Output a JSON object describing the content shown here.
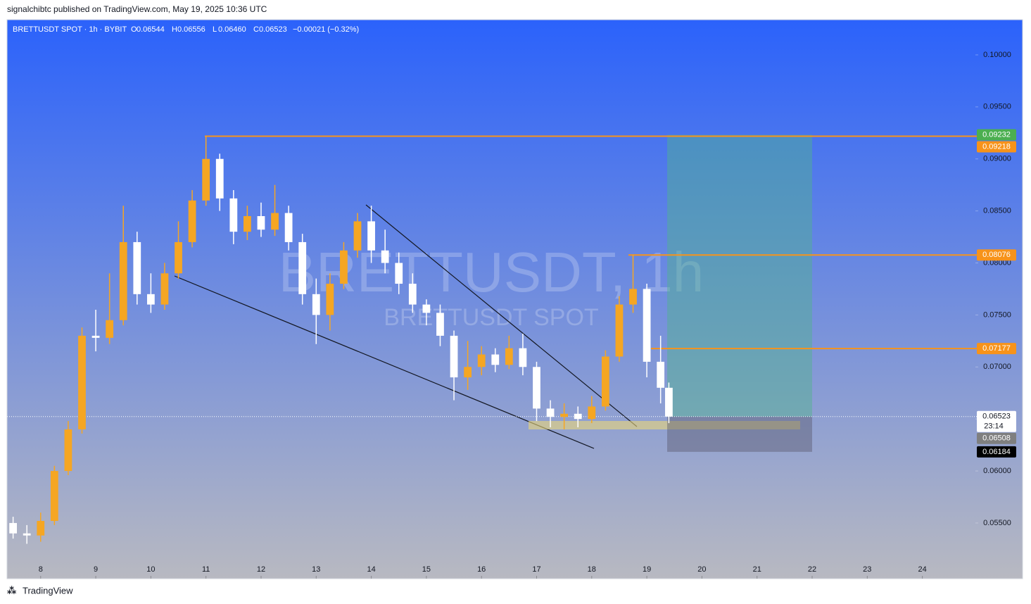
{
  "page": {
    "publisher": "signalchibtc published on TradingView.com, May 19, 2025 10:36 UTC",
    "brand": "TradingView"
  },
  "chart_data": {
    "type": "candlestick",
    "symbol": "BRETTUSDT SPOT · 1h · BYBIT",
    "ohlc_header": [
      {
        "key": "O",
        "value": "0.06544"
      },
      {
        "key": "H",
        "value": "0.06556"
      },
      {
        "key": "L",
        "value": "0.06460"
      },
      {
        "key": "C",
        "value": "0.06523"
      }
    ],
    "change": "−0.00021 (−0.32%)",
    "watermark": "BRETTUSDT, 1h",
    "watermark_sub": "BRETTUSDT SPOT",
    "countdown": "23:14",
    "up_color": "#f5a623",
    "down_color": "#ffffff",
    "xlim": [
      7.39,
      24.95
    ],
    "xticks": [
      8,
      9,
      10,
      11,
      12,
      13,
      14,
      15,
      16,
      17,
      18,
      19,
      20,
      21,
      22,
      23,
      24
    ],
    "ylim": [
      0.04965,
      0.10338
    ],
    "yticks": [
      {
        "value": 0.055,
        "label": "0.05500"
      },
      {
        "value": 0.06,
        "label": "0.06000"
      },
      {
        "value": 0.065,
        "label": "0.06500"
      },
      {
        "value": 0.07,
        "label": "0.07000"
      },
      {
        "value": 0.075,
        "label": "0.07500"
      },
      {
        "value": 0.08,
        "label": "0.08000"
      },
      {
        "value": 0.085,
        "label": "0.08500"
      },
      {
        "value": 0.09,
        "label": "0.09000"
      },
      {
        "value": 0.095,
        "label": "0.09500"
      },
      {
        "value": 0.1,
        "label": "0.10000"
      }
    ],
    "x": [
      7.5,
      7.75,
      8.0,
      8.25,
      8.5,
      8.75,
      9.0,
      9.25,
      9.5,
      9.75,
      10.0,
      10.25,
      10.5,
      10.75,
      11.0,
      11.25,
      11.5,
      11.75,
      12.0,
      12.25,
      12.5,
      12.75,
      13.0,
      13.25,
      13.5,
      13.75,
      14.0,
      14.25,
      14.5,
      14.75,
      15.0,
      15.25,
      15.5,
      15.75,
      16.0,
      16.25,
      16.5,
      16.75,
      17.0,
      17.25,
      17.5,
      17.75,
      18.0,
      18.25,
      18.5,
      18.75,
      19.0,
      19.25,
      19.4
    ],
    "open": [
      0.055,
      0.054,
      0.0538,
      0.0552,
      0.06,
      0.064,
      0.073,
      0.0728,
      0.0745,
      0.082,
      0.077,
      0.076,
      0.079,
      0.082,
      0.086,
      0.09,
      0.0862,
      0.083,
      0.0845,
      0.0832,
      0.0848,
      0.082,
      0.077,
      0.075,
      0.078,
      0.0812,
      0.084,
      0.0812,
      0.08,
      0.078,
      0.076,
      0.0752,
      0.073,
      0.069,
      0.07,
      0.0712,
      0.0702,
      0.0718,
      0.07,
      0.066,
      0.0652,
      0.0655,
      0.065,
      0.0662,
      0.071,
      0.076,
      0.0775,
      0.0705,
      0.068
    ],
    "high": [
      0.0556,
      0.0548,
      0.056,
      0.0605,
      0.0648,
      0.0738,
      0.0755,
      0.079,
      0.0855,
      0.083,
      0.079,
      0.08,
      0.084,
      0.087,
      0.0922,
      0.0905,
      0.087,
      0.0855,
      0.0858,
      0.0875,
      0.0855,
      0.0828,
      0.0785,
      0.079,
      0.082,
      0.0848,
      0.0855,
      0.0832,
      0.081,
      0.079,
      0.0765,
      0.076,
      0.0735,
      0.0725,
      0.072,
      0.0718,
      0.073,
      0.0732,
      0.0705,
      0.0668,
      0.0665,
      0.0662,
      0.0672,
      0.0716,
      0.0768,
      0.0808,
      0.078,
      0.073,
      0.0685
    ],
    "low": [
      0.0535,
      0.053,
      0.0532,
      0.0548,
      0.0596,
      0.0636,
      0.0715,
      0.0722,
      0.074,
      0.076,
      0.0752,
      0.0755,
      0.0785,
      0.0815,
      0.0855,
      0.085,
      0.0818,
      0.0822,
      0.0825,
      0.0826,
      0.0812,
      0.076,
      0.0722,
      0.0735,
      0.0775,
      0.0805,
      0.08,
      0.079,
      0.077,
      0.0752,
      0.074,
      0.072,
      0.0668,
      0.0678,
      0.0692,
      0.0695,
      0.0698,
      0.0692,
      0.0648,
      0.0642,
      0.064,
      0.0642,
      0.0646,
      0.0658,
      0.0705,
      0.0752,
      0.069,
      0.0665,
      0.0646
    ],
    "close": [
      0.054,
      0.0538,
      0.0552,
      0.06,
      0.064,
      0.073,
      0.0728,
      0.0745,
      0.082,
      0.077,
      0.076,
      0.079,
      0.082,
      0.086,
      0.09,
      0.0862,
      0.083,
      0.0845,
      0.0832,
      0.0848,
      0.082,
      0.077,
      0.075,
      0.078,
      0.0812,
      0.084,
      0.0812,
      0.08,
      0.078,
      0.076,
      0.0752,
      0.073,
      0.069,
      0.07,
      0.0712,
      0.0702,
      0.0718,
      0.07,
      0.066,
      0.0652,
      0.0655,
      0.065,
      0.0662,
      0.071,
      0.076,
      0.0775,
      0.0705,
      0.068,
      0.06523
    ],
    "levels": [
      {
        "value": 0.09232,
        "color": "#4caf50"
      },
      {
        "value": 0.09218,
        "color": "#f7931a"
      },
      {
        "value": 0.08076,
        "color": "#f7931a"
      },
      {
        "value": 0.07177,
        "color": "#f7931a"
      },
      {
        "value": 0.06523,
        "color": "#ffffff"
      },
      {
        "value": 0.06508,
        "color": "#7f7f7f"
      },
      {
        "value": 0.06184,
        "color": "#000000"
      }
    ]
  }
}
